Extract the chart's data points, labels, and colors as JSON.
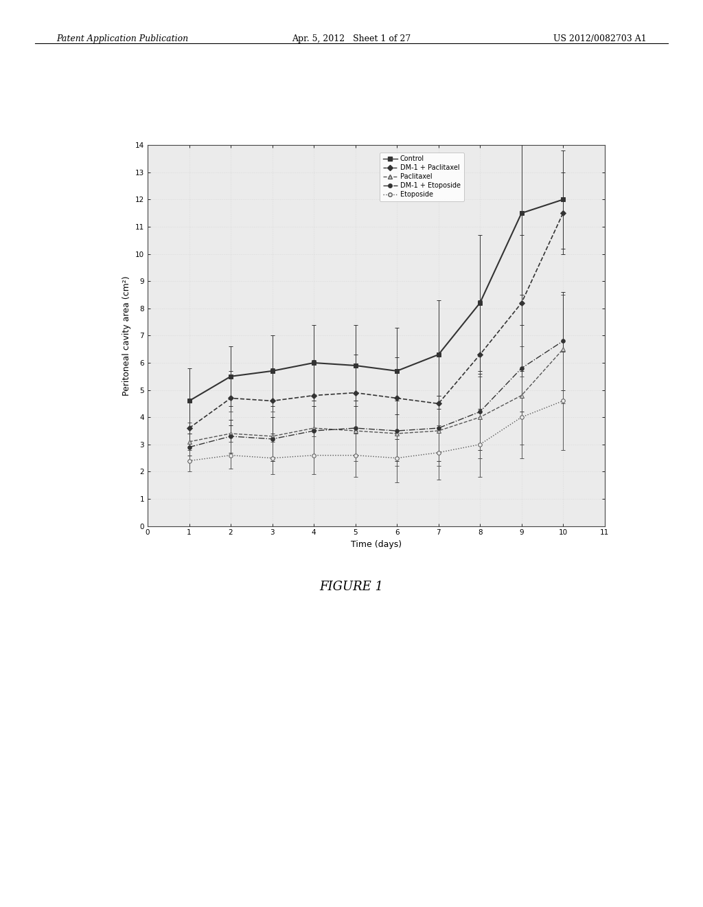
{
  "title": "",
  "xlabel": "Time (days)",
  "ylabel": "Peritoneal cavity area (cm²)",
  "figure_caption": "FIGURE 1",
  "header_left": "Patent Application Publication",
  "header_center": "Apr. 5, 2012   Sheet 1 of 27",
  "header_right": "US 2012/0082703 A1",
  "xlim": [
    0,
    11
  ],
  "ylim": [
    0,
    14
  ],
  "xticks": [
    0,
    1,
    2,
    3,
    4,
    5,
    6,
    7,
    8,
    9,
    10,
    11
  ],
  "yticks": [
    0,
    1,
    2,
    3,
    4,
    5,
    6,
    7,
    8,
    9,
    10,
    11,
    12,
    13,
    14
  ],
  "series": {
    "Control": {
      "x": [
        1,
        2,
        3,
        4,
        5,
        6,
        7,
        8,
        9,
        10
      ],
      "y": [
        4.6,
        5.5,
        5.7,
        6.0,
        5.9,
        5.7,
        6.3,
        8.2,
        11.5,
        12.0
      ],
      "yerr": [
        1.2,
        1.1,
        1.3,
        1.4,
        1.5,
        1.6,
        2.0,
        2.5,
        3.0,
        1.8
      ],
      "color": "#333333",
      "linestyle": "-",
      "marker": "s",
      "marker_size": 4,
      "linewidth": 1.5,
      "label": "Control"
    },
    "DM1_Paclitaxel": {
      "x": [
        1,
        2,
        3,
        4,
        5,
        6,
        7,
        8,
        9,
        10
      ],
      "y": [
        3.6,
        4.7,
        4.6,
        4.8,
        4.9,
        4.7,
        4.5,
        6.3,
        8.2,
        11.5
      ],
      "yerr": [
        1.0,
        1.0,
        1.2,
        1.3,
        1.4,
        1.5,
        1.8,
        2.0,
        2.5,
        1.5
      ],
      "color": "#333333",
      "linestyle": "--",
      "marker": "D",
      "marker_size": 4,
      "linewidth": 1.2,
      "label": "DM-1 + Paclitaxel"
    },
    "Paclitaxel": {
      "x": [
        1,
        2,
        3,
        4,
        5,
        6,
        7,
        8,
        9,
        10
      ],
      "y": [
        3.1,
        3.4,
        3.3,
        3.6,
        3.5,
        3.4,
        3.5,
        4.0,
        4.8,
        6.5
      ],
      "yerr": [
        0.7,
        0.8,
        0.9,
        1.0,
        1.1,
        1.2,
        1.3,
        1.5,
        1.8,
        2.0
      ],
      "color": "#555555",
      "linestyle": "--",
      "marker": "^",
      "marker_size": 4,
      "linewidth": 1.0,
      "label": "Paclitaxel"
    },
    "DM1_Etoposide": {
      "x": [
        1,
        2,
        3,
        4,
        5,
        6,
        7,
        8,
        9,
        10
      ],
      "y": [
        2.9,
        3.3,
        3.2,
        3.5,
        3.6,
        3.5,
        3.6,
        4.2,
        5.8,
        6.8
      ],
      "yerr": [
        0.5,
        0.6,
        0.8,
        0.9,
        1.0,
        1.1,
        1.2,
        1.4,
        1.6,
        1.8
      ],
      "color": "#333333",
      "linestyle": "-.",
      "marker": "o",
      "marker_size": 4,
      "linewidth": 1.0,
      "label": "DM-1 + Etoposide"
    },
    "Etoposide": {
      "x": [
        1,
        2,
        3,
        4,
        5,
        6,
        7,
        8,
        9,
        10
      ],
      "y": [
        2.4,
        2.6,
        2.5,
        2.6,
        2.6,
        2.5,
        2.7,
        3.0,
        4.0,
        4.6
      ],
      "yerr": [
        0.4,
        0.5,
        0.6,
        0.7,
        0.8,
        0.9,
        1.0,
        1.2,
        1.5,
        1.8
      ],
      "color": "#555555",
      "linestyle": ":",
      "marker": "o",
      "marker_size": 4,
      "linewidth": 1.0,
      "label": "Etoposide"
    }
  },
  "background_color": "#ffffff",
  "plot_bg": "#ebebeb"
}
